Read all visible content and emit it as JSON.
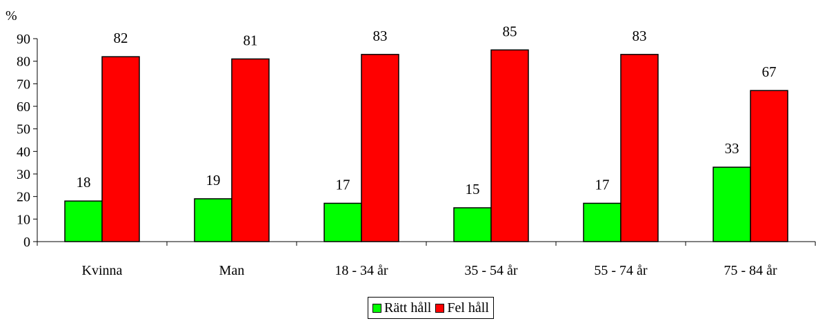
{
  "chart_data": {
    "type": "bar",
    "ylabel": "%",
    "ylim": [
      0,
      90
    ],
    "yticks": [
      0,
      10,
      20,
      30,
      40,
      50,
      60,
      70,
      80,
      90
    ],
    "categories": [
      "Kvinna",
      "Man",
      "18 - 34 år",
      "35 - 54 år",
      "55 - 74 år",
      "75 - 84 år"
    ],
    "series": [
      {
        "name": "Rätt håll",
        "color": "#00ff00",
        "values": [
          18,
          19,
          17,
          15,
          17,
          33
        ]
      },
      {
        "name": "Fel håll",
        "color": "#ff0000",
        "values": [
          82,
          81,
          83,
          85,
          83,
          67
        ]
      }
    ],
    "grid": false,
    "legend_position": "bottom"
  }
}
